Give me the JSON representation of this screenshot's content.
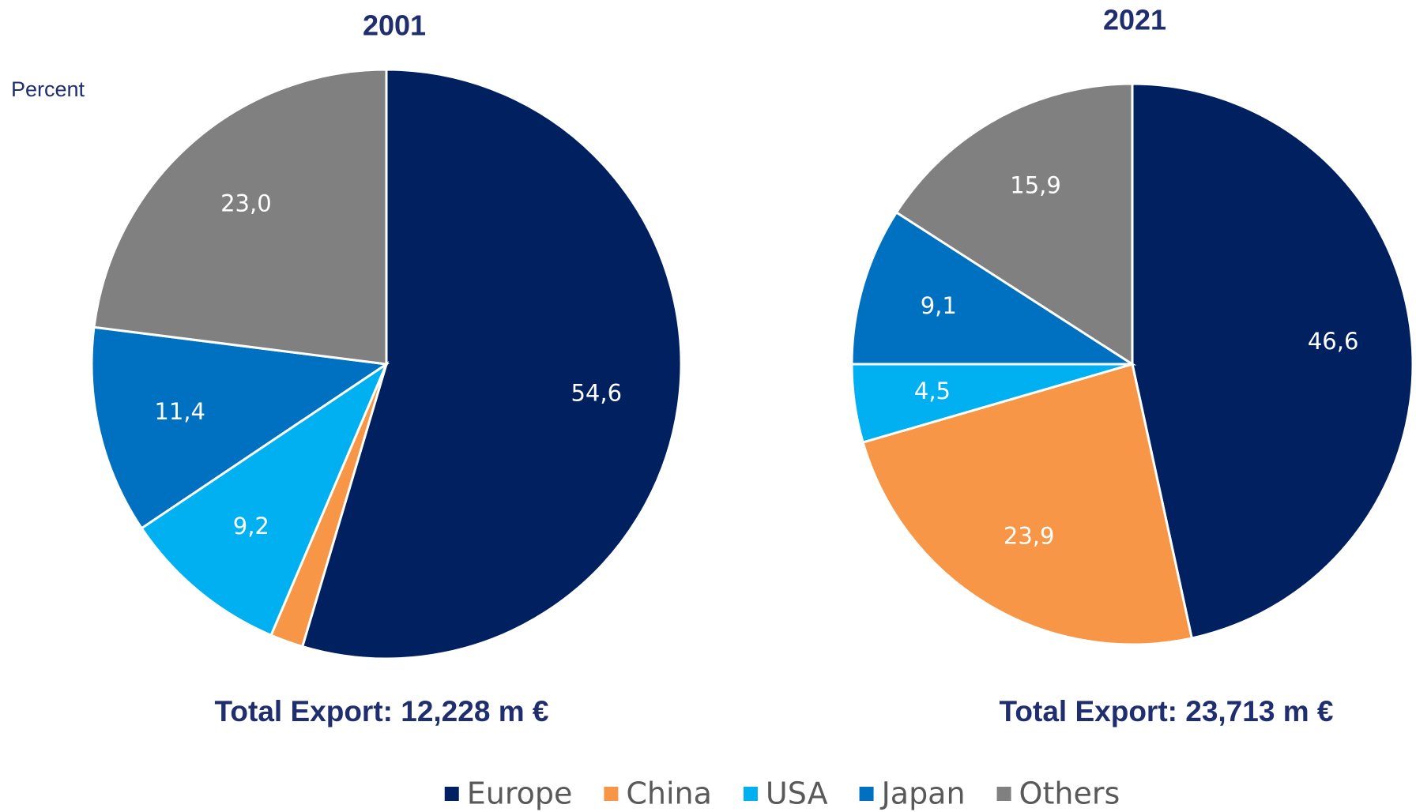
{
  "chart_data": [
    {
      "type": "pie",
      "title": "2001",
      "subtitle": "Percent",
      "annotation": "Total Export: 12,228 m €",
      "categories": [
        "Europe",
        "China",
        "USA",
        "Japan",
        "Others"
      ],
      "values": [
        54.6,
        1.8,
        9.2,
        11.4,
        23.0
      ],
      "value_labels": [
        "54,6",
        null,
        "9,2",
        "11,4",
        "23,0"
      ],
      "colors": [
        "#002060",
        "#f79646",
        "#00b0f0",
        "#0070c0",
        "#808080"
      ]
    },
    {
      "type": "pie",
      "title": "2021",
      "annotation": "Total Export: 23,713 m €",
      "categories": [
        "Europe",
        "China",
        "USA",
        "Japan",
        "Others"
      ],
      "values": [
        46.6,
        23.9,
        4.5,
        9.1,
        15.9
      ],
      "value_labels": [
        "46,6",
        "23,9",
        "4,5",
        "9,1",
        "15,9"
      ],
      "colors": [
        "#002060",
        "#f79646",
        "#00b0f0",
        "#0070c0",
        "#808080"
      ]
    }
  ]
}
